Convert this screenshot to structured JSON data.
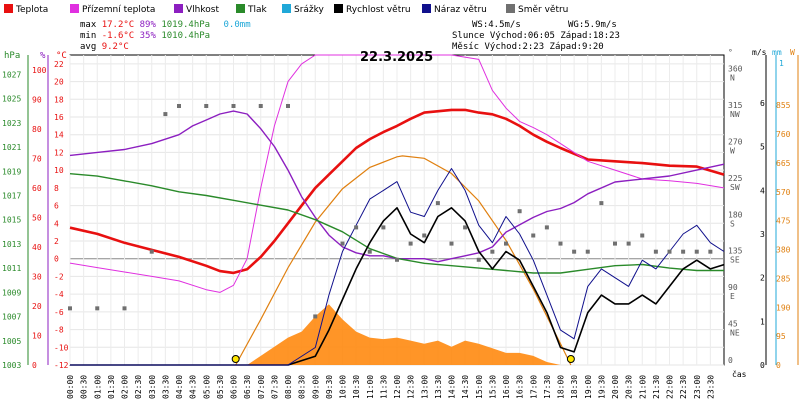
{
  "legend": [
    {
      "label": "Teplota",
      "color": "#e81010"
    },
    {
      "label": "Přízemní teplota",
      "color": "#e030e0"
    },
    {
      "label": "Vlhkost",
      "color": "#8c1fc0"
    },
    {
      "label": "Tlak",
      "color": "#2a8a2a"
    },
    {
      "label": "Srážky",
      "color": "#20a8d8"
    },
    {
      "label": "Rychlost větru",
      "color": "#000000"
    },
    {
      "label": "Náraz větru",
      "color": "#10108c"
    },
    {
      "label": "Směr větru",
      "color": "#707070"
    }
  ],
  "stats": {
    "max_label": "max",
    "max_temp": "17.2°C",
    "max_hum": "89%",
    "max_press": "1019.4hPa",
    "rain": "0.0mm",
    "min_label": "min",
    "min_temp": "-1.6°C",
    "min_hum": "35%",
    "min_press": "1010.4hPa",
    "avg_label": "avg",
    "avg_temp": "9.2°C",
    "ws": "WS:4.5m/s",
    "wg": "WG:5.9m/s",
    "sun": "Slunce Východ:06:05  Západ:18:23",
    "moon": "Měsíc  Východ:2:23   Západ:9:20"
  },
  "chart_data": {
    "type": "line",
    "title": "22.3.2025",
    "x_unit_label": "čas",
    "x_ticks": [
      "00:00",
      "00:30",
      "01:00",
      "01:30",
      "02:00",
      "02:30",
      "03:00",
      "03:30",
      "04:00",
      "04:30",
      "05:00",
      "05:30",
      "06:00",
      "06:30",
      "07:00",
      "07:30",
      "08:00",
      "08:30",
      "09:00",
      "09:30",
      "10:00",
      "10:30",
      "11:00",
      "11:30",
      "12:00",
      "12:30",
      "13:00",
      "13:30",
      "14:00",
      "14:30",
      "15:00",
      "15:30",
      "16:00",
      "16:30",
      "17:00",
      "17:30",
      "18:00",
      "18:30",
      "19:00",
      "19:30",
      "20:00",
      "20:30",
      "21:00",
      "21:30",
      "22:00",
      "22:30",
      "23:00",
      "23:30"
    ],
    "axes": {
      "pressure": {
        "unit": "hPa",
        "ticks": [
          1003,
          1005,
          1007,
          1009,
          1011,
          1013,
          1015,
          1017,
          1019,
          1021,
          1023,
          1025,
          1027
        ]
      },
      "humidity": {
        "unit": "%",
        "ticks": [
          0,
          10,
          20,
          30,
          40,
          50,
          60,
          70,
          80,
          90,
          100
        ]
      },
      "temperature": {
        "unit": "°C",
        "ticks": [
          -12,
          -10,
          -8,
          -6,
          -4,
          -2,
          0,
          2,
          4,
          6,
          8,
          10,
          12,
          14,
          16,
          18,
          20,
          22
        ]
      },
      "direction": {
        "unit": "°",
        "ticks": [
          {
            "deg": 0,
            "label": "0"
          },
          {
            "deg": 45,
            "label": "45 NE"
          },
          {
            "deg": 90,
            "label": "90 E"
          },
          {
            "deg": 135,
            "label": "135 SE"
          },
          {
            "deg": 180,
            "label": "180 S"
          },
          {
            "deg": 225,
            "label": "225 SW"
          },
          {
            "deg": 270,
            "label": "270 W"
          },
          {
            "deg": 315,
            "label": "315 NW"
          },
          {
            "deg": 360,
            "label": "360 N"
          }
        ]
      },
      "wind": {
        "unit": "m/s",
        "ticks": [
          0,
          1,
          2,
          3,
          4,
          5,
          6
        ]
      },
      "rain": {
        "unit": "mm",
        "top_label": "1",
        "ticks": []
      },
      "solar": {
        "unit": "W",
        "ticks": [
          0,
          95,
          190,
          285,
          380,
          475,
          570,
          665,
          760,
          855
        ]
      }
    },
    "series": [
      {
        "name": "Teplota",
        "axis": "temperature",
        "color": "#e81010",
        "x": [
          0,
          1,
          2,
          3,
          4,
          5,
          5.5,
          6,
          6.5,
          7,
          7.5,
          8,
          8.5,
          9,
          9.5,
          10,
          10.5,
          11,
          11.5,
          12,
          12.5,
          13,
          14,
          14.5,
          15,
          15.5,
          16,
          16.5,
          17,
          17.5,
          18,
          19,
          20,
          21,
          22,
          23,
          24
        ],
        "y": [
          3.5,
          2.8,
          1.8,
          1.0,
          0.2,
          -0.8,
          -1.4,
          -1.6,
          -1.2,
          0.2,
          2,
          4,
          6,
          8,
          9.5,
          11,
          12.5,
          13.5,
          14.3,
          15,
          15.8,
          16.5,
          16.8,
          16.8,
          16.5,
          16.3,
          15.8,
          15,
          14,
          13.2,
          12.5,
          11.2,
          11,
          10.8,
          10.5,
          10.4,
          9.5
        ]
      },
      {
        "name": "Přízemní teplota",
        "axis": "temperature",
        "color": "#e030e0",
        "x": [
          0,
          1,
          2,
          3,
          4,
          5,
          5.5,
          6,
          6.5,
          7,
          7.5,
          8,
          8.5,
          9,
          10,
          11,
          12,
          13,
          14,
          15,
          15.5,
          16,
          16.5,
          17,
          17.5,
          18,
          18.5,
          19,
          20,
          21,
          22,
          23,
          24
        ],
        "y": [
          -0.5,
          -1,
          -1.5,
          -2,
          -2.5,
          -3.5,
          -3.8,
          -3,
          0,
          8,
          15,
          20,
          22,
          23,
          23,
          23,
          23,
          23,
          23,
          22.5,
          19,
          17,
          15.5,
          14.8,
          14,
          13,
          12,
          11,
          10,
          9,
          8.8,
          8.5,
          8
        ]
      },
      {
        "name": "Vlhkost",
        "axis": "humidity",
        "color": "#8c1fc0",
        "x": [
          0,
          1,
          2,
          3,
          4,
          4.5,
          5,
          5.5,
          6,
          6.5,
          7,
          7.5,
          8,
          8.5,
          9,
          9.5,
          10,
          10.5,
          11,
          11.5,
          12,
          13,
          13.5,
          14,
          14.5,
          15,
          15.5,
          16,
          17,
          17.5,
          18,
          18.5,
          19,
          20,
          21,
          22,
          23,
          24
        ],
        "y": [
          71,
          72,
          73,
          75,
          78,
          81,
          83,
          85,
          86,
          85,
          80,
          74,
          66,
          57,
          50,
          44,
          40,
          38,
          37,
          37,
          36,
          36,
          35,
          36,
          37,
          38,
          40,
          45,
          50,
          52,
          53,
          55,
          58,
          62,
          63,
          64,
          66,
          68
        ]
      },
      {
        "name": "Tlak",
        "axis": "pressure",
        "color": "#2a8a2a",
        "x": [
          0,
          1,
          2,
          3,
          4,
          5,
          6,
          7,
          8,
          9,
          10,
          11,
          12,
          13,
          14,
          15,
          16,
          17,
          18,
          19,
          20,
          21,
          22,
          23,
          24
        ],
        "y": [
          1018.8,
          1018.6,
          1018.2,
          1017.8,
          1017.3,
          1017.0,
          1016.6,
          1016.2,
          1015.8,
          1015.0,
          1014.0,
          1012.6,
          1011.8,
          1011.4,
          1011.2,
          1011.0,
          1010.8,
          1010.6,
          1010.6,
          1010.9,
          1011.2,
          1011.3,
          1011.0,
          1010.8,
          1010.8
        ]
      },
      {
        "name": "Rychlost větru",
        "axis": "wind",
        "color": "#000000",
        "x": [
          0,
          2,
          4,
          5,
          6,
          7,
          8,
          9,
          9.5,
          10,
          10.5,
          11,
          11.5,
          12,
          12.5,
          13,
          13.5,
          14,
          14.5,
          15,
          15.5,
          16,
          16.5,
          17,
          17.5,
          18,
          18.5,
          19,
          19.5,
          20,
          20.5,
          21,
          21.5,
          22,
          22.5,
          23,
          23.5,
          24
        ],
        "y": [
          0,
          0,
          0,
          0,
          0,
          0,
          0,
          0.2,
          0.8,
          1.5,
          2.2,
          2.8,
          3.3,
          3.6,
          3.0,
          2.8,
          3.4,
          3.6,
          3.3,
          2.6,
          2.2,
          2.6,
          2.4,
          1.8,
          1.2,
          0.4,
          0.3,
          1.2,
          1.6,
          1.4,
          1.4,
          1.6,
          1.4,
          1.8,
          2.2,
          2.4,
          2.2,
          2.3
        ]
      },
      {
        "name": "Náraz větru",
        "axis": "wind",
        "color": "#10108c",
        "x": [
          0,
          2,
          4,
          5,
          6,
          7,
          8,
          9,
          9.5,
          10,
          10.5,
          11,
          11.5,
          12,
          12.5,
          13,
          13.5,
          14,
          14.5,
          15,
          15.5,
          16,
          16.5,
          17,
          17.5,
          18,
          18.5,
          19,
          19.5,
          20,
          20.5,
          21,
          21.5,
          22,
          22.5,
          23,
          23.5,
          24
        ],
        "y": [
          0,
          0,
          0,
          0,
          0,
          0,
          0,
          0.4,
          1.6,
          2.6,
          3.2,
          3.8,
          4.0,
          4.2,
          3.5,
          3.4,
          4.0,
          4.5,
          4.0,
          3.2,
          2.8,
          3.4,
          3.0,
          2.4,
          1.6,
          0.8,
          0.6,
          1.8,
          2.2,
          2.0,
          1.8,
          2.4,
          2.2,
          2.6,
          3.0,
          3.2,
          2.8,
          2.6
        ]
      },
      {
        "name": "Směr větru",
        "axis": "direction",
        "color": "#707070",
        "type": "scatter",
        "x": [
          0,
          1,
          2,
          3,
          3.5,
          4,
          5,
          6,
          7,
          8,
          9,
          10,
          10.5,
          11,
          11.5,
          12,
          12.5,
          13,
          13.5,
          14,
          14.5,
          15,
          15.5,
          16,
          16.5,
          17,
          17.5,
          18,
          18.5,
          19,
          19.5,
          20,
          20.5,
          21,
          21.5,
          22,
          22.5,
          23,
          23.5
        ],
        "y": [
          70,
          70,
          70,
          140,
          310,
          320,
          320,
          320,
          320,
          320,
          60,
          150,
          170,
          140,
          170,
          130,
          150,
          160,
          200,
          150,
          170,
          130,
          140,
          150,
          190,
          160,
          170,
          150,
          140,
          140,
          200,
          150,
          150,
          160,
          140,
          140,
          140,
          140,
          140
        ]
      }
    ],
    "solar_area": {
      "name": "Sluneční záření",
      "axis": "solar",
      "color": "#ff8a10",
      "x": [
        6.5,
        7,
        7.5,
        8,
        8.5,
        9,
        9.5,
        10,
        10.5,
        11,
        11.5,
        12,
        12.5,
        13,
        13.5,
        14,
        14.5,
        15,
        15.5,
        16,
        16.5,
        17,
        17.5,
        18
      ],
      "y": [
        0,
        30,
        60,
        90,
        110,
        160,
        200,
        150,
        110,
        90,
        85,
        90,
        80,
        70,
        80,
        60,
        80,
        70,
        55,
        40,
        40,
        30,
        10,
        0
      ]
    },
    "solar_theoretical": {
      "name": "Teoretické záření",
      "axis": "solar",
      "color": "#e08010",
      "x": [
        6.08,
        7,
        8,
        9,
        10,
        11,
        12,
        12.2,
        13,
        14,
        15,
        16,
        17,
        18,
        18.38
      ],
      "y": [
        0,
        150,
        320,
        470,
        580,
        650,
        685,
        688,
        680,
        630,
        540,
        410,
        250,
        70,
        0
      ]
    },
    "sunrise_hour": 6.08,
    "sunset_hour": 18.38
  }
}
